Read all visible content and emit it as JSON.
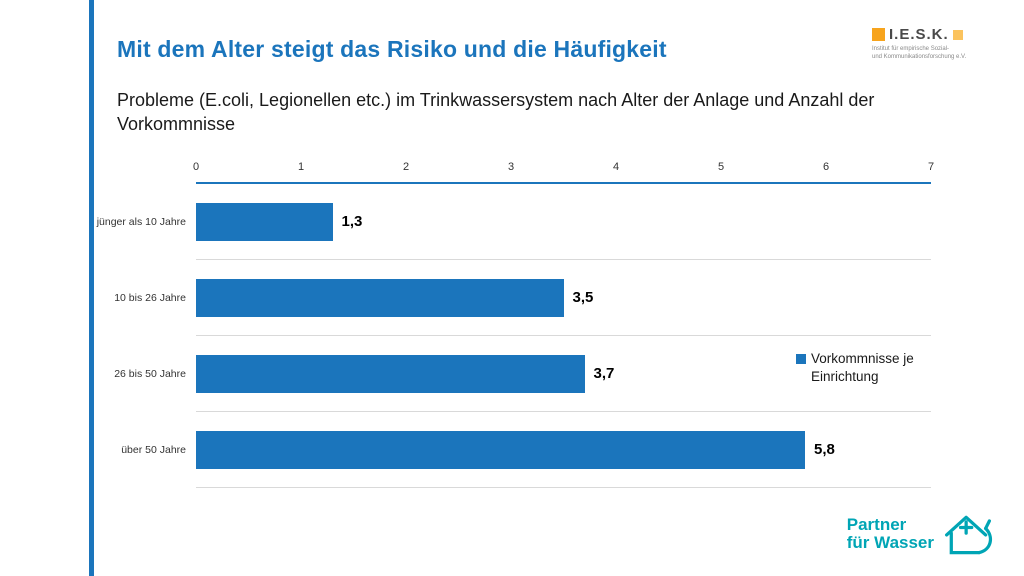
{
  "slide": {
    "title": "Mit dem Alter steigt das Risiko und die Häufigkeit",
    "subtitle": "Probleme (E.coli, Legionellen etc.) im Trinkwassersystem nach Alter der Anlage und Anzahl der Vorkommnisse"
  },
  "logos": {
    "iesk": {
      "name": "I.E.S.K.",
      "caption_line1": "Institut für empirische Sozial-",
      "caption_line2": "und Kommunikationsforschung e.V."
    },
    "partner": {
      "line1": "Partner",
      "line2": "für Wasser"
    }
  },
  "chart_data": {
    "type": "bar",
    "orientation": "horizontal",
    "title": "Probleme (E.coli, Legionellen etc.) im Trinkwassersystem nach Alter der Anlage und Anzahl der Vorkommnisse",
    "categories": [
      "jünger als 10 Jahre",
      "10 bis 26 Jahre",
      "26 bis 50 Jahre",
      "über 50 Jahre"
    ],
    "values": [
      1.3,
      3.5,
      3.7,
      5.8
    ],
    "value_labels": [
      "1,3",
      "3,5",
      "3,7",
      "5,8"
    ],
    "x_ticks": [
      "0",
      "1",
      "2",
      "3",
      "4",
      "5",
      "6",
      "7"
    ],
    "xlim": [
      0,
      7
    ],
    "xlabel": "",
    "ylabel": "",
    "grid": true,
    "legend": "Vorkommnisse je Einrichtung",
    "legend_position": "right-middle",
    "bar_color": "#1b75bc"
  },
  "colors": {
    "accent_blue": "#1b75bc",
    "teal": "#00a5b5",
    "orange": "#f7a41d",
    "orange_light": "#fbc35e",
    "grid": "#d9d9d9",
    "text_dark": "#1a1a1a"
  }
}
